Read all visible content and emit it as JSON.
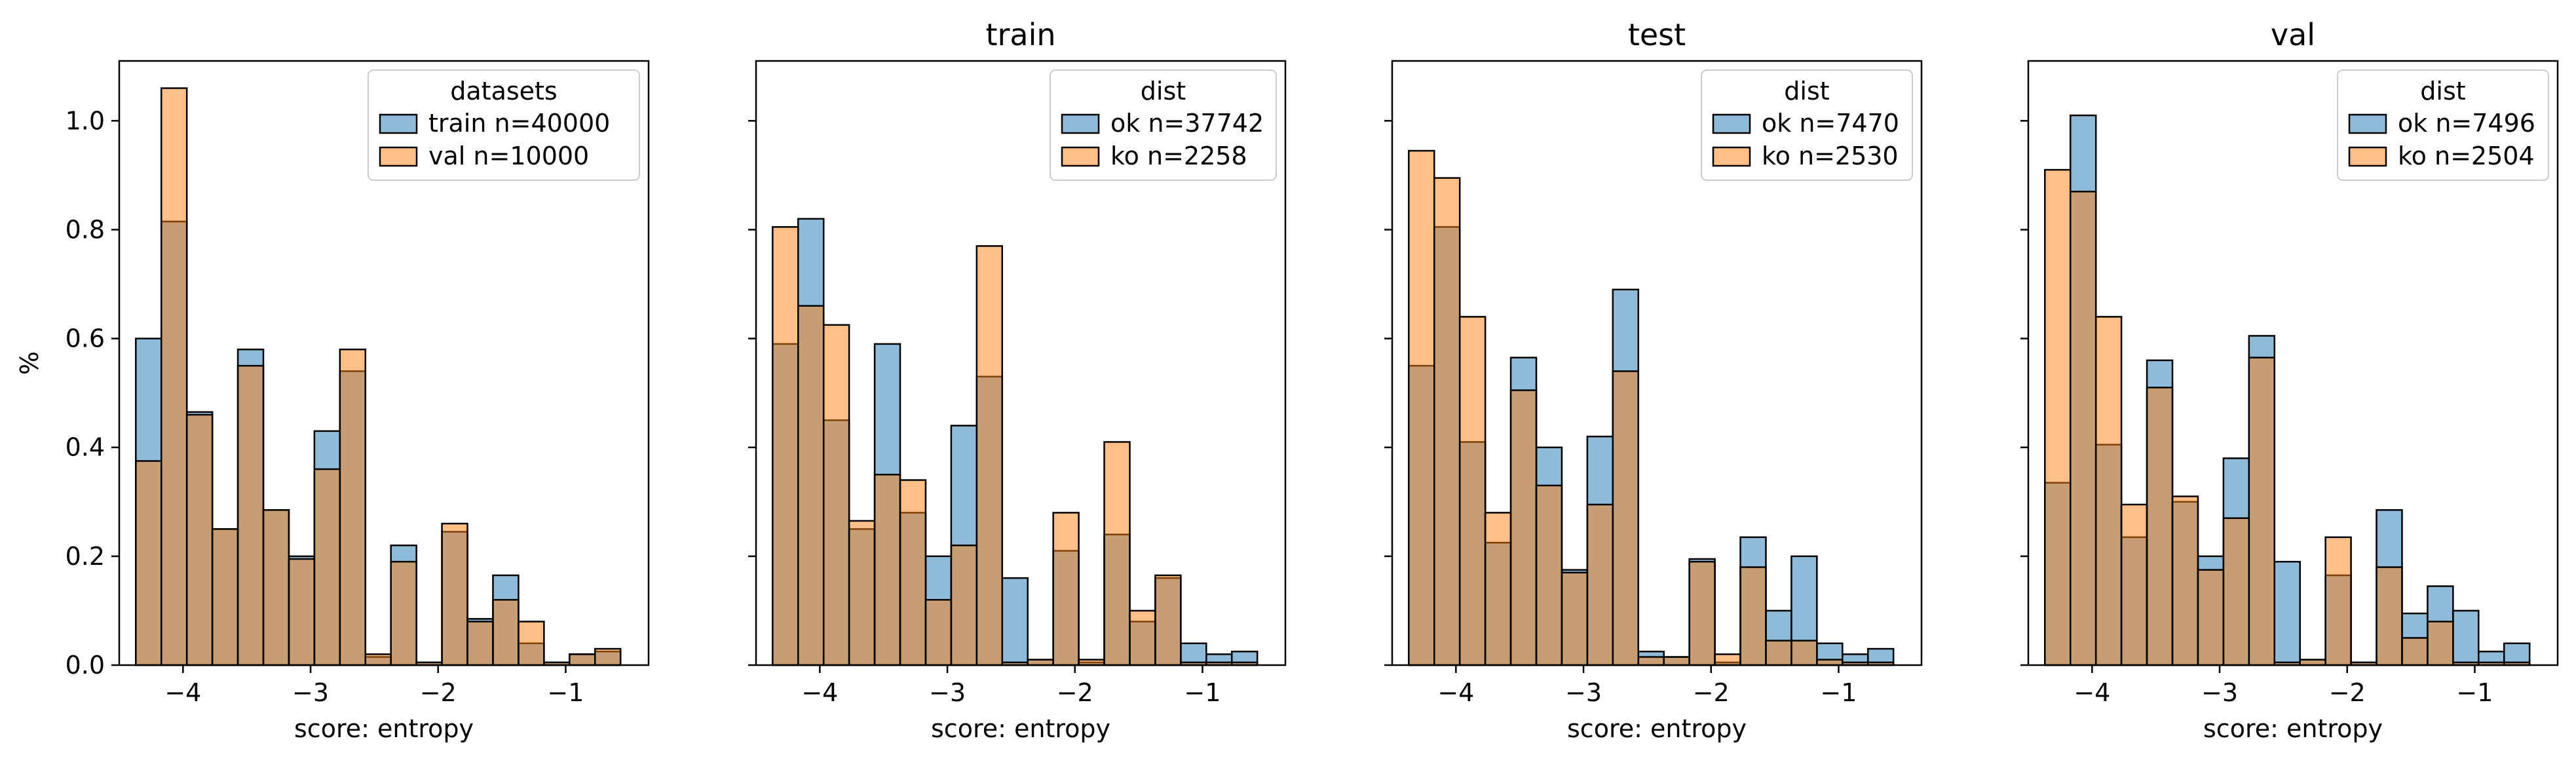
{
  "colors": {
    "series_a": "#1f77b4",
    "series_b": "#ff7f0e",
    "edge": "#000000",
    "legend_edge": "#cccccc"
  },
  "chart_data": [
    {
      "type": "bar",
      "title": "",
      "xlabel": "score: entropy",
      "ylabel": "%",
      "xlim": [
        -4.5,
        -0.35
      ],
      "ylim": [
        0,
        1.11
      ],
      "xticks": [
        -4,
        -3,
        -2,
        -1
      ],
      "yticks": [
        0.0,
        0.2,
        0.4,
        0.6,
        0.8,
        1.0
      ],
      "show_y_tick_labels": true,
      "bins": {
        "start": -4.37,
        "width": 0.2
      },
      "legend": {
        "title": "datasets",
        "placement": "upper right"
      },
      "series": [
        {
          "name": "train n=40000",
          "color_key": "series_a",
          "values": [
            0.6,
            0.815,
            0.465,
            0.25,
            0.58,
            0.285,
            0.2,
            0.43,
            0.54,
            0.015,
            0.22,
            0.005,
            0.245,
            0.085,
            0.165,
            0.04,
            0.005,
            0.02,
            0.025
          ]
        },
        {
          "name": "val n=10000",
          "color_key": "series_b",
          "values": [
            0.375,
            1.06,
            0.46,
            0.25,
            0.55,
            0.285,
            0.195,
            0.36,
            0.58,
            0.02,
            0.19,
            0.005,
            0.26,
            0.08,
            0.12,
            0.08,
            0.005,
            0.02,
            0.03
          ]
        }
      ]
    },
    {
      "type": "bar",
      "title": "train",
      "xlabel": "score: entropy",
      "ylabel": "",
      "xlim": [
        -4.5,
        -0.35
      ],
      "ylim": [
        0,
        1.11
      ],
      "xticks": [
        -4,
        -3,
        -2,
        -1
      ],
      "yticks": [
        0.0,
        0.2,
        0.4,
        0.6,
        0.8,
        1.0
      ],
      "show_y_tick_labels": false,
      "bins": {
        "start": -4.37,
        "width": 0.2
      },
      "legend": {
        "title": "dist",
        "placement": "upper right"
      },
      "series": [
        {
          "name": "ok n=37742",
          "color_key": "series_a",
          "values": [
            0.59,
            0.82,
            0.45,
            0.25,
            0.59,
            0.28,
            0.2,
            0.44,
            0.53,
            0.16,
            0.01,
            0.21,
            0.005,
            0.24,
            0.08,
            0.16,
            0.04,
            0.02,
            0.025
          ]
        },
        {
          "name": "ko n=2258",
          "color_key": "series_b",
          "values": [
            0.805,
            0.66,
            0.625,
            0.265,
            0.35,
            0.34,
            0.12,
            0.22,
            0.77,
            0.005,
            0.01,
            0.28,
            0.01,
            0.41,
            0.1,
            0.165,
            0.005,
            0.005,
            0.005
          ]
        }
      ]
    },
    {
      "type": "bar",
      "title": "test",
      "xlabel": "score: entropy",
      "ylabel": "",
      "xlim": [
        -4.5,
        -0.35
      ],
      "ylim": [
        0,
        1.11
      ],
      "xticks": [
        -4,
        -3,
        -2,
        -1
      ],
      "yticks": [
        0.0,
        0.2,
        0.4,
        0.6,
        0.8,
        1.0
      ],
      "show_y_tick_labels": false,
      "bins": {
        "start": -4.37,
        "width": 0.2
      },
      "legend": {
        "title": "dist",
        "placement": "upper right"
      },
      "series": [
        {
          "name": "ok n=7470",
          "color_key": "series_a",
          "values": [
            0.55,
            0.805,
            0.41,
            0.225,
            0.565,
            0.4,
            0.175,
            0.42,
            0.69,
            0.025,
            0.015,
            0.195,
            0.005,
            0.235,
            0.1,
            0.2,
            0.04,
            0.02,
            0.03
          ]
        },
        {
          "name": "ko n=2530",
          "color_key": "series_b",
          "values": [
            0.945,
            0.895,
            0.64,
            0.28,
            0.505,
            0.33,
            0.17,
            0.295,
            0.54,
            0.015,
            0.015,
            0.19,
            0.02,
            0.18,
            0.045,
            0.045,
            0.01,
            0.005,
            0.005
          ]
        }
      ]
    },
    {
      "type": "bar",
      "title": "val",
      "xlabel": "score: entropy",
      "ylabel": "",
      "xlim": [
        -4.5,
        -0.35
      ],
      "ylim": [
        0,
        1.11
      ],
      "xticks": [
        -4,
        -3,
        -2,
        -1
      ],
      "yticks": [
        0.0,
        0.2,
        0.4,
        0.6,
        0.8,
        1.0
      ],
      "show_y_tick_labels": false,
      "bins": {
        "start": -4.37,
        "width": 0.2
      },
      "legend": {
        "title": "dist",
        "placement": "upper right"
      },
      "series": [
        {
          "name": "ok n=7496",
          "color_key": "series_a",
          "values": [
            0.335,
            1.01,
            0.405,
            0.235,
            0.56,
            0.3,
            0.2,
            0.38,
            0.605,
            0.19,
            0.01,
            0.165,
            0.005,
            0.285,
            0.095,
            0.145,
            0.1,
            0.025,
            0.04
          ]
        },
        {
          "name": "ko n=2504",
          "color_key": "series_b",
          "values": [
            0.91,
            0.87,
            0.64,
            0.295,
            0.51,
            0.31,
            0.175,
            0.27,
            0.565,
            0.005,
            0.01,
            0.235,
            0.005,
            0.18,
            0.05,
            0.08,
            0.005,
            0.005,
            0.005
          ]
        }
      ]
    }
  ]
}
